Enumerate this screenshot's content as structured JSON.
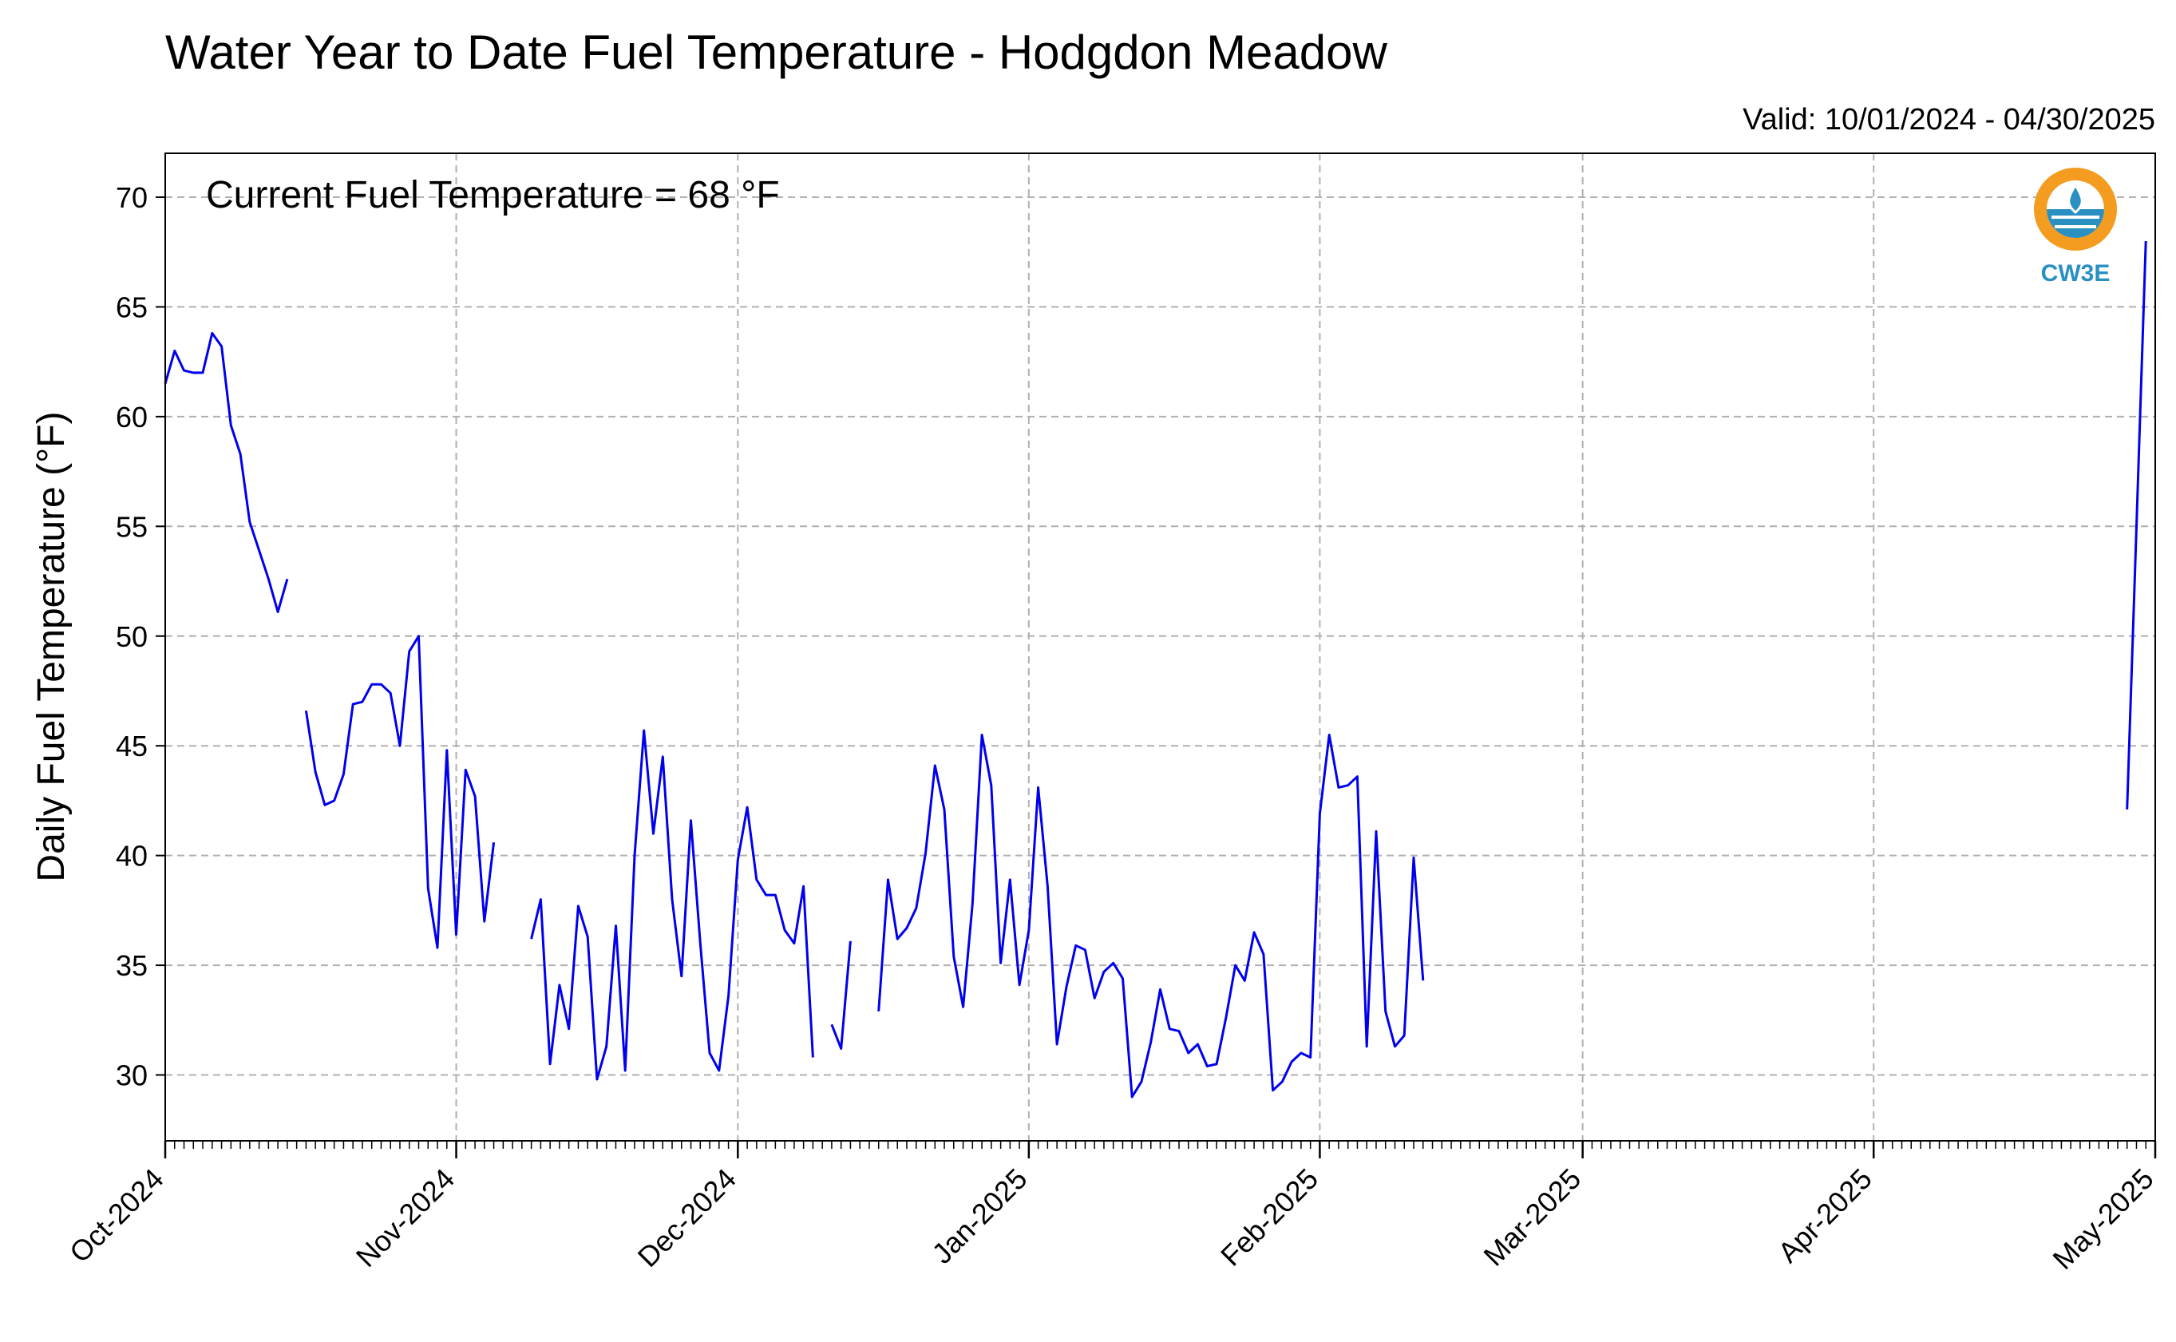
{
  "chart_data": {
    "type": "line",
    "title": "Water Year to Date Fuel Temperature - Hodgdon Meadow",
    "subtitle": "Valid: 10/01/2024 - 04/30/2025",
    "annotation": "Current Fuel Temperature = 68 °F",
    "xlabel": "",
    "ylabel": "Daily Fuel Temperature (°F)",
    "ylim": [
      27,
      72
    ],
    "yticks": [
      30,
      35,
      40,
      45,
      50,
      55,
      60,
      65,
      70
    ],
    "xlim": [
      "2024-10-01",
      "2025-05-01"
    ],
    "xticks": [
      {
        "date": "2024-10-01",
        "label": "Oct-2024"
      },
      {
        "date": "2024-11-01",
        "label": "Nov-2024"
      },
      {
        "date": "2024-12-01",
        "label": "Dec-2024"
      },
      {
        "date": "2025-01-01",
        "label": "Jan-2025"
      },
      {
        "date": "2025-02-01",
        "label": "Feb-2025"
      },
      {
        "date": "2025-03-01",
        "label": "Mar-2025"
      },
      {
        "date": "2025-04-01",
        "label": "Apr-2025"
      },
      {
        "date": "2025-05-01",
        "label": "May-2025"
      }
    ],
    "grid": true,
    "line_color": "#0000ee",
    "logo_text": "CW3E",
    "series": [
      {
        "x": [
          "2024-10-01",
          "2024-10-02",
          "2024-10-03",
          "2024-10-04",
          "2024-10-05",
          "2024-10-06",
          "2024-10-07",
          "2024-10-08",
          "2024-10-09",
          "2024-10-10",
          "2024-10-11",
          "2024-10-12",
          "2024-10-13",
          "2024-10-14",
          null,
          "2024-10-16",
          "2024-10-17",
          "2024-10-18",
          "2024-10-19",
          "2024-10-20",
          "2024-10-21",
          "2024-10-22",
          "2024-10-23",
          "2024-10-24",
          "2024-10-25",
          "2024-10-26",
          "2024-10-27",
          "2024-10-28",
          "2024-10-29",
          "2024-10-30",
          "2024-10-31",
          "2024-11-01",
          "2024-11-02",
          "2024-11-03",
          "2024-11-04",
          "2024-11-05",
          null,
          "2024-11-09",
          "2024-11-10",
          "2024-11-11",
          "2024-11-12",
          "2024-11-13",
          "2024-11-14",
          "2024-11-15",
          "2024-11-16",
          "2024-11-17",
          "2024-11-18",
          "2024-11-19",
          "2024-11-20",
          "2024-11-21",
          "2024-11-22",
          "2024-11-23",
          "2024-11-24",
          "2024-11-25",
          "2024-11-26",
          "2024-11-27",
          "2024-11-28",
          "2024-11-29",
          "2024-11-30",
          "2024-12-01",
          "2024-12-02",
          "2024-12-03",
          "2024-12-04",
          "2024-12-05",
          "2024-12-06",
          "2024-12-07",
          "2024-12-08",
          "2024-12-09",
          null,
          "2024-12-11",
          "2024-12-12",
          "2024-12-13",
          null,
          "2024-12-16",
          "2024-12-17",
          "2024-12-18",
          "2024-12-19",
          "2024-12-20",
          "2024-12-21",
          "2024-12-22",
          "2024-12-23",
          "2024-12-24",
          "2024-12-25",
          "2024-12-26",
          "2024-12-27",
          "2024-12-28",
          "2024-12-29",
          "2024-12-30",
          "2024-12-31",
          "2025-01-01",
          "2025-01-02",
          "2025-01-03",
          "2025-01-04",
          "2025-01-05",
          "2025-01-06",
          "2025-01-07",
          "2025-01-08",
          "2025-01-09",
          "2025-01-10",
          "2025-01-11",
          "2025-01-12",
          "2025-01-13",
          "2025-01-14",
          "2025-01-15",
          "2025-01-16",
          "2025-01-17",
          "2025-01-18",
          "2025-01-19",
          "2025-01-20",
          "2025-01-21",
          "2025-01-22",
          "2025-01-23",
          "2025-01-24",
          "2025-01-25",
          "2025-01-26",
          "2025-01-27",
          "2025-01-28",
          "2025-01-29",
          "2025-01-30",
          "2025-01-31",
          "2025-02-01",
          "2025-02-02",
          "2025-02-03",
          "2025-02-04",
          "2025-02-05",
          "2025-02-06",
          "2025-02-07",
          "2025-02-08",
          "2025-02-09",
          "2025-02-10",
          "2025-02-11",
          "2025-02-12",
          null,
          "2025-04-28",
          "2025-04-29",
          "2025-04-30"
        ],
        "y": [
          61.5,
          63.0,
          62.1,
          62.0,
          62.0,
          63.8,
          63.2,
          59.6,
          58.3,
          55.2,
          53.9,
          52.6,
          51.1,
          52.6,
          null,
          46.6,
          43.8,
          42.3,
          42.5,
          43.7,
          46.9,
          47.0,
          47.8,
          47.8,
          47.4,
          45.0,
          49.3,
          50.0,
          38.5,
          35.8,
          44.8,
          36.4,
          43.9,
          42.7,
          37.0,
          40.6,
          null,
          36.2,
          38.0,
          30.5,
          34.1,
          32.1,
          37.7,
          36.3,
          29.8,
          31.3,
          36.8,
          30.2,
          40.0,
          45.7,
          41.0,
          44.5,
          38.0,
          34.5,
          41.6,
          36.0,
          31.0,
          30.2,
          33.6,
          39.8,
          42.2,
          38.9,
          38.2,
          38.2,
          36.6,
          36.0,
          38.6,
          30.8,
          null,
          32.3,
          31.2,
          36.1,
          null,
          32.9,
          38.9,
          36.2,
          36.7,
          37.6,
          40.1,
          44.1,
          42.1,
          35.4,
          33.1,
          37.8,
          45.5,
          43.2,
          35.1,
          38.9,
          34.1,
          36.6,
          43.1,
          38.6,
          31.4,
          34.0,
          35.9,
          35.7,
          33.5,
          34.7,
          35.1,
          34.4,
          29.0,
          29.7,
          31.5,
          33.9,
          32.1,
          32.0,
          31.0,
          31.4,
          30.4,
          30.5,
          32.6,
          35.0,
          34.3,
          36.5,
          35.5,
          29.3,
          29.7,
          30.6,
          31.0,
          30.8,
          41.9,
          45.5,
          43.1,
          43.2,
          43.6,
          31.3,
          41.1,
          32.9,
          31.3,
          31.8,
          39.9,
          34.3,
          null,
          42.1,
          55.0,
          68.0
        ]
      }
    ]
  }
}
